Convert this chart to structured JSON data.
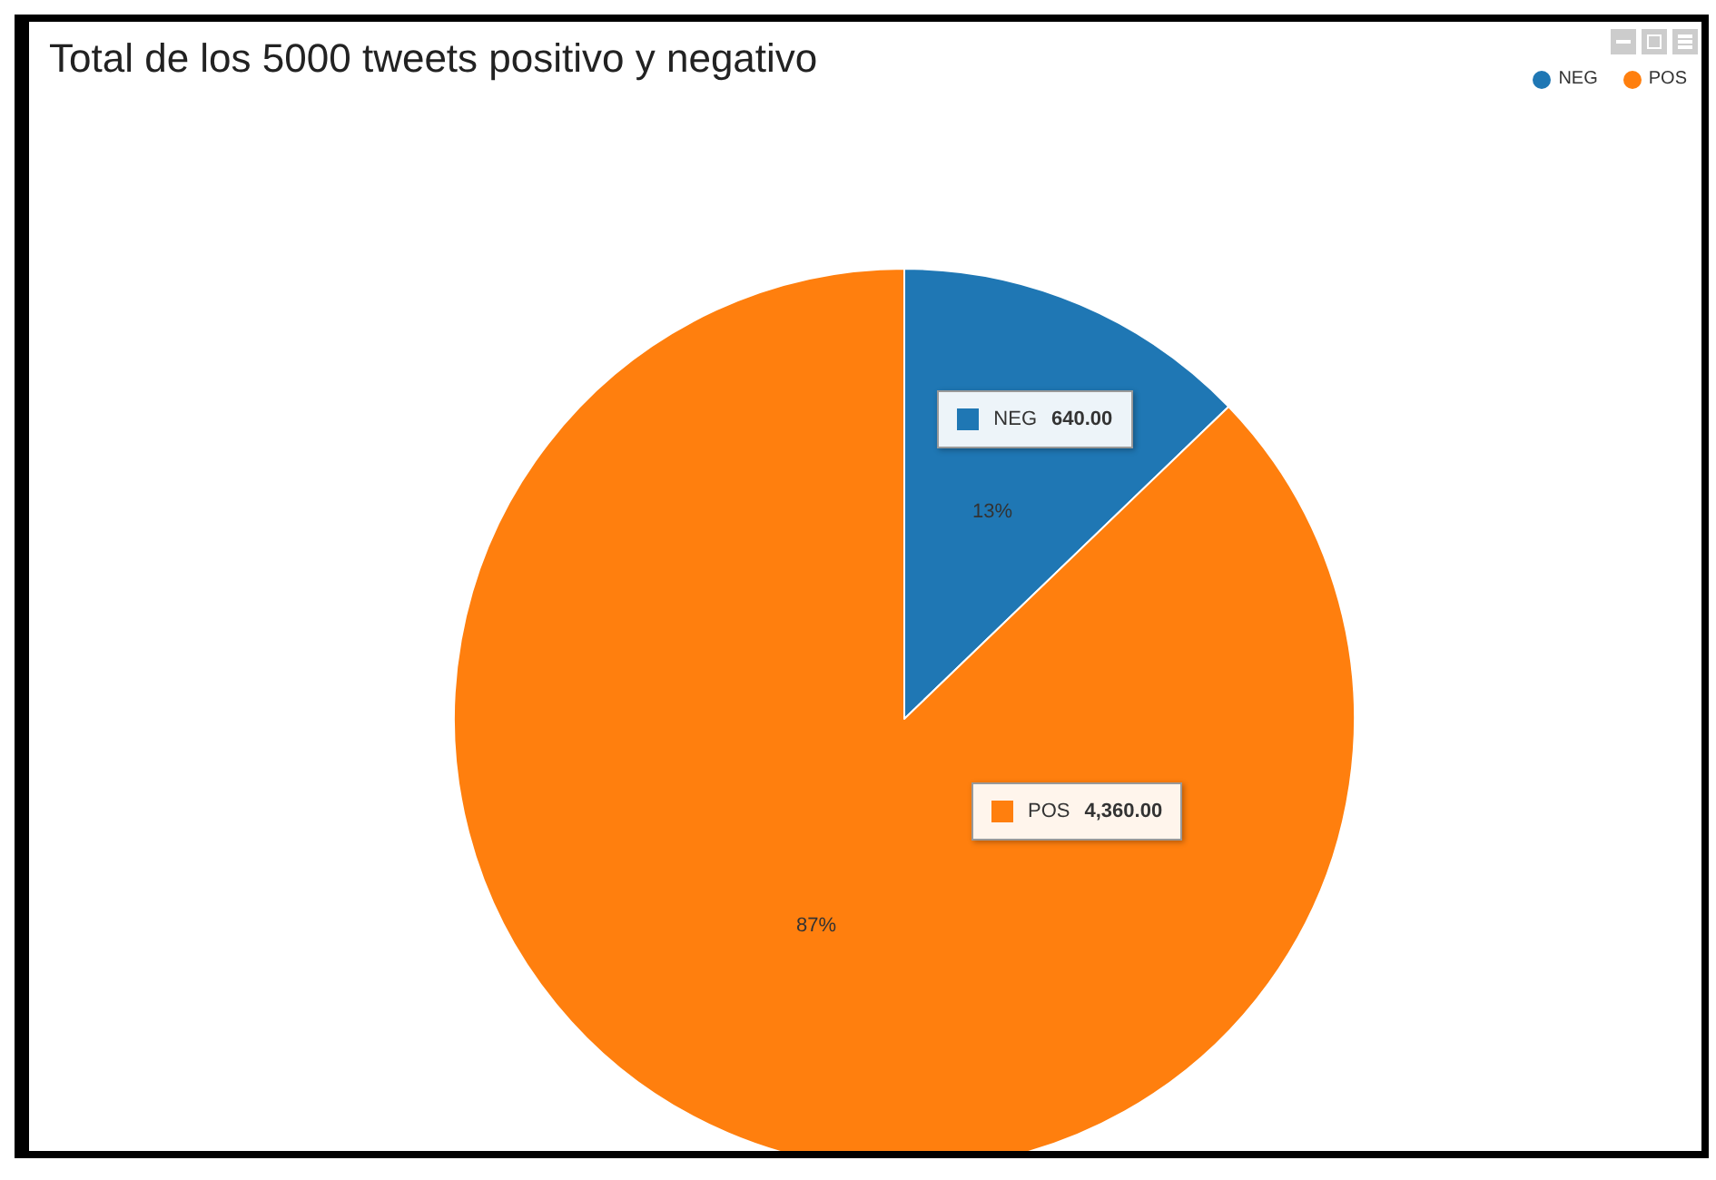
{
  "chart_data": {
    "type": "pie",
    "title": "Total de los 5000 tweets positivo y negativo",
    "categories": [
      "NEG",
      "POS"
    ],
    "values": [
      640,
      4360
    ],
    "colors": [
      "#1f77b4",
      "#ff7f0e"
    ],
    "value_labels": [
      "640.00",
      "4,360.00"
    ],
    "annotations": [
      {
        "text": "13%",
        "x": "NEG"
      },
      {
        "text": "87%",
        "x": "POS"
      }
    ],
    "legend": "top right"
  }
}
